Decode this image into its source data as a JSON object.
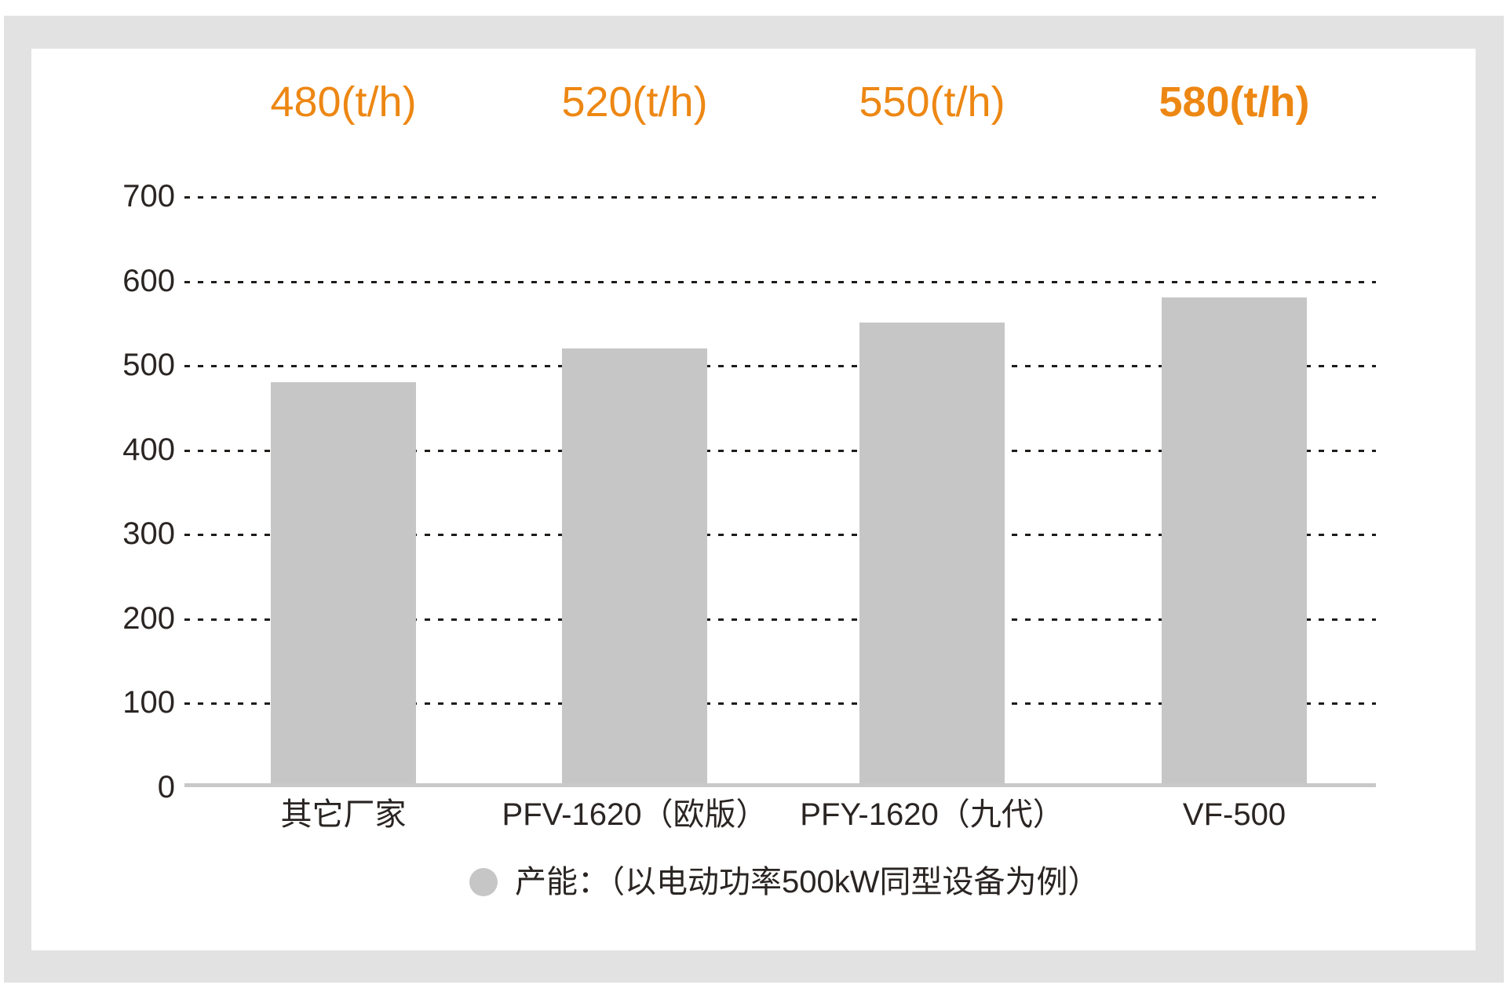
{
  "chart_data": {
    "type": "bar",
    "title": "",
    "xlabel": "",
    "ylabel": "",
    "categories": [
      "其它厂家",
      "PFV-1620（欧版）",
      "PFY-1620（九代）",
      "VF-500"
    ],
    "values": [
      480,
      520,
      550,
      580
    ],
    "value_labels": [
      "480(t/h)",
      "520(t/h)",
      "550(t/h)",
      "580(t/h)"
    ],
    "highlighted_index": 3,
    "ylim": [
      0,
      700
    ],
    "yticks": [
      0,
      100,
      200,
      300,
      400,
      500,
      600,
      700
    ],
    "grid": "horizontal dotted",
    "legend": {
      "position": "bottom",
      "marker": "circle",
      "label": "产能：（以电动功率500kW同型设备为例）"
    },
    "colors": {
      "bar": "#c6c6c6",
      "value_label": "#ed8713",
      "axis_line": "#c9c9c9",
      "gridline": "#1f1c1a",
      "text": "#2a2523",
      "frame": "#e2e2e2"
    }
  }
}
